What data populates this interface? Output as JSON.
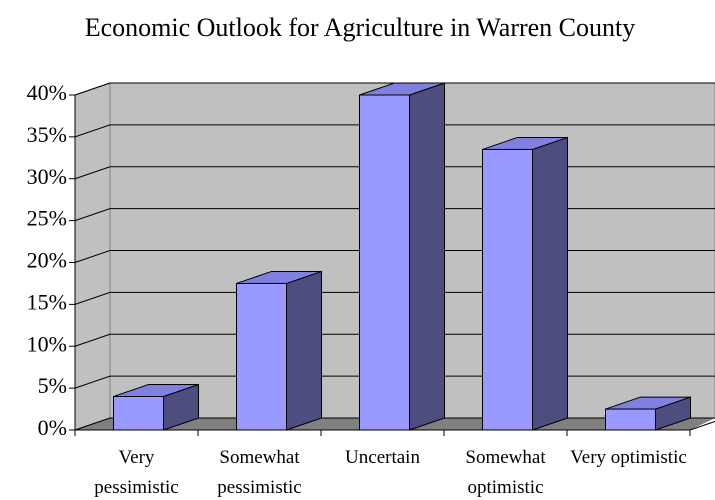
{
  "chart_data": {
    "type": "bar3d",
    "title": "Economic Outlook for Agriculture in Warren County",
    "categories": [
      "Very pessimistic",
      "Somewhat pessimistic",
      "Uncertain",
      "Somewhat optimistic",
      "Very optimistic"
    ],
    "values": [
      4,
      17.5,
      40,
      33.5,
      2.5
    ],
    "color": "#9999ff",
    "ylim": [
      0,
      40
    ],
    "yticks": [
      {
        "value": 0,
        "label": "0%"
      },
      {
        "value": 5,
        "label": "5%"
      },
      {
        "value": 10,
        "label": "10%"
      },
      {
        "value": 15,
        "label": "15%"
      },
      {
        "value": 20,
        "label": "20%"
      },
      {
        "value": 25,
        "label": "25%"
      },
      {
        "value": 30,
        "label": "30%"
      },
      {
        "value": 35,
        "label": "35%"
      },
      {
        "value": 40,
        "label": "40%"
      }
    ],
    "grid": true
  }
}
